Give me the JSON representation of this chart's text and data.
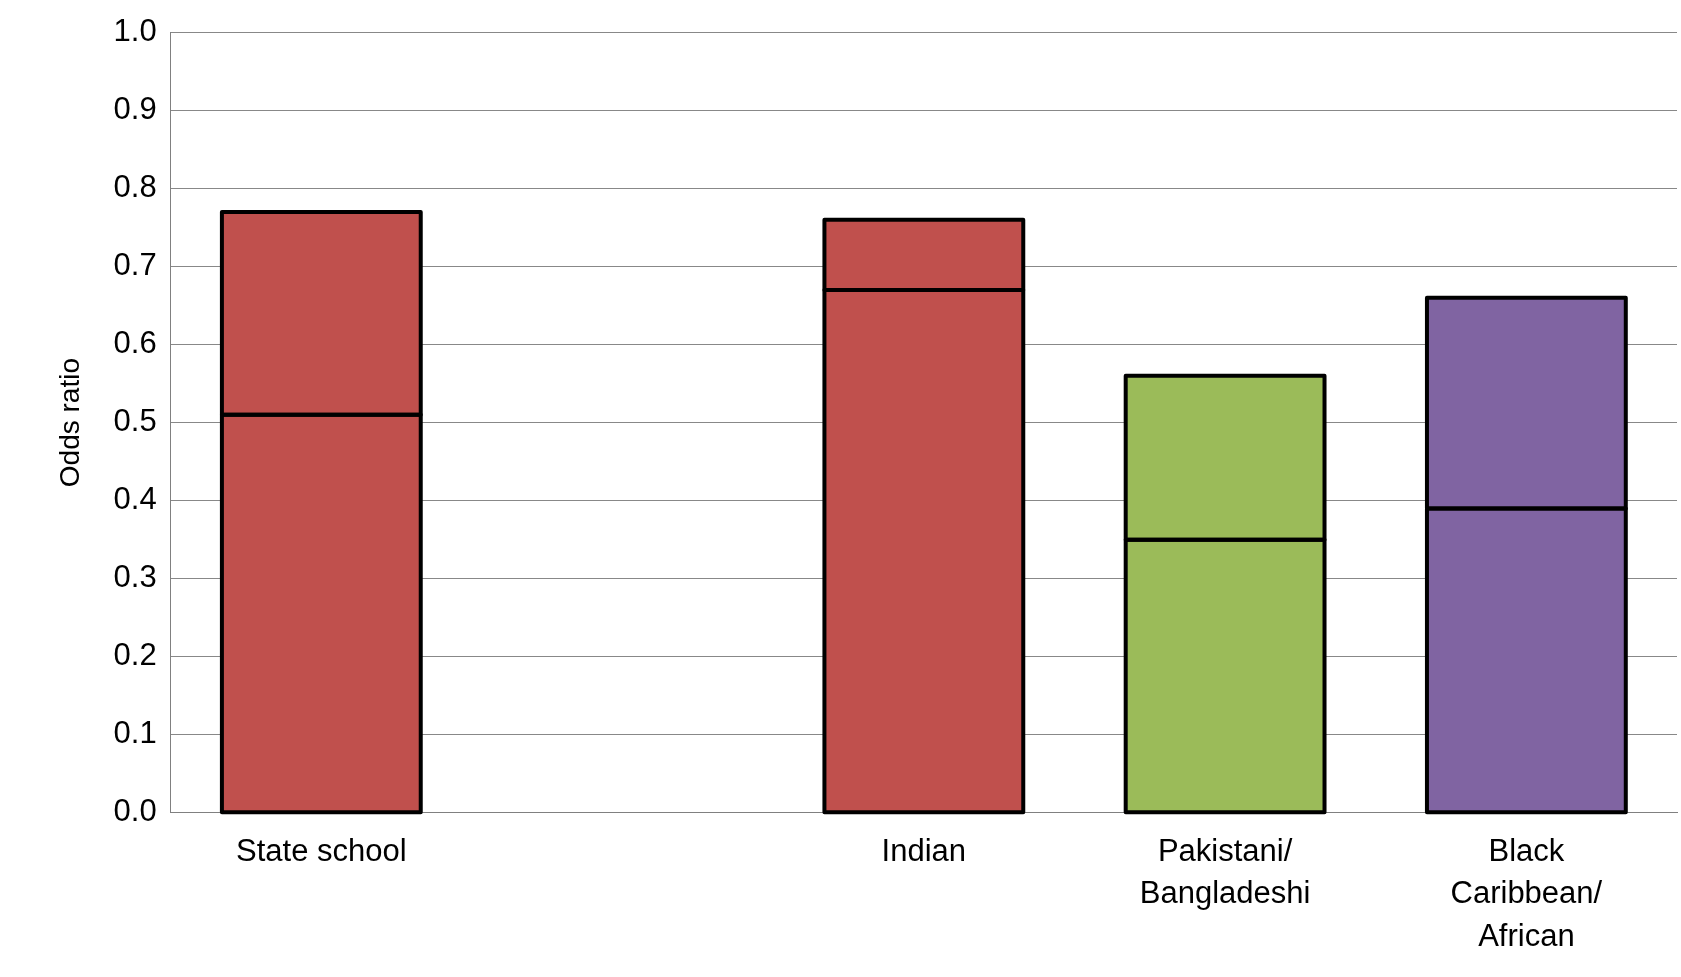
{
  "chart_data": {
    "type": "bar",
    "stacked": true,
    "ylabel": "Odds ratio",
    "categories": [
      "State school",
      null,
      "Indian",
      "Pakistani/ Bangladeshi",
      "Black Caribbean/ African"
    ],
    "series": [
      {
        "colors": [
          "#c0504d",
          null,
          "#c0504d",
          "#9bbb59",
          "#8064a2"
        ],
        "values": [
          0.51,
          null,
          0.67,
          0.35,
          0.39
        ]
      },
      {
        "colors": [
          "#c0504d",
          null,
          "#c0504d",
          "#9bbb59",
          "#8064a2"
        ],
        "values": [
          0.26,
          null,
          0.09,
          0.21,
          0.27
        ]
      }
    ],
    "ylim": [
      0,
      1
    ],
    "yticks": [
      {
        "value": 0,
        "label": "0.0"
      },
      {
        "value": 0.1,
        "label": "0.1"
      },
      {
        "value": 0.2,
        "label": "0.2"
      },
      {
        "value": 0.3,
        "label": "0.3"
      },
      {
        "value": 0.4,
        "label": "0.4"
      },
      {
        "value": 0.5,
        "label": "0.5"
      },
      {
        "value": 0.6,
        "label": "0.6"
      },
      {
        "value": 0.7,
        "label": "0.7"
      },
      {
        "value": 0.8,
        "label": "0.8"
      },
      {
        "value": 0.9,
        "label": "0.9"
      },
      {
        "value": 1,
        "label": "1.0"
      }
    ],
    "grid": "y",
    "legend": false
  }
}
